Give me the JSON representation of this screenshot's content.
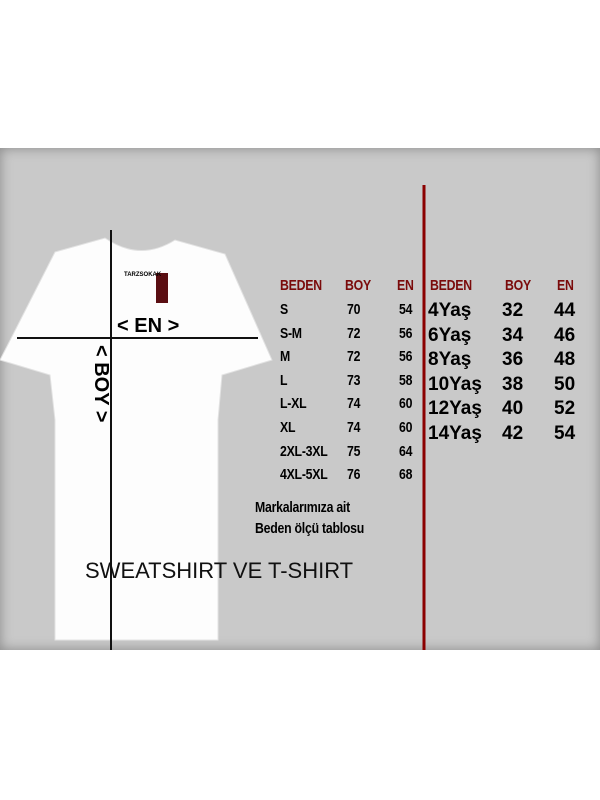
{
  "shirt": {
    "tag_brand": "TARZSOKAK",
    "width_label": "< EN >",
    "length_label": "< BOY >"
  },
  "adult_table": {
    "headers": [
      "BEDEN",
      "BOY",
      "EN"
    ],
    "rows": [
      [
        "S",
        "70",
        "54"
      ],
      [
        "S-M",
        "72",
        "56"
      ],
      [
        "M",
        "72",
        "56"
      ],
      [
        "L",
        "73",
        "58"
      ],
      [
        "L-XL",
        "74",
        "60"
      ],
      [
        "XL",
        "74",
        "60"
      ],
      [
        "2XL-3XL",
        "75",
        "64"
      ],
      [
        "4XL-5XL",
        "76",
        "68"
      ]
    ]
  },
  "kids_table": {
    "headers": [
      "BEDEN",
      "BOY",
      "EN"
    ],
    "rows": [
      [
        "4Yaş",
        "32",
        "44"
      ],
      [
        "6Yaş",
        "34",
        "46"
      ],
      [
        "8Yaş",
        "36",
        "48"
      ],
      [
        "10Yaş",
        "38",
        "50"
      ],
      [
        "12Yaş",
        "40",
        "52"
      ],
      [
        "14Yaş",
        "42",
        "54"
      ]
    ]
  },
  "note": {
    "line1": "Markalarımıza ait",
    "line2": "Beden ölçü tablosu"
  },
  "caption": "SWEATSHIRT VE T-SHIRT",
  "colors": {
    "header": "#7a0a0a",
    "divider": "#8b0000",
    "panel": "#c9c9c9"
  }
}
